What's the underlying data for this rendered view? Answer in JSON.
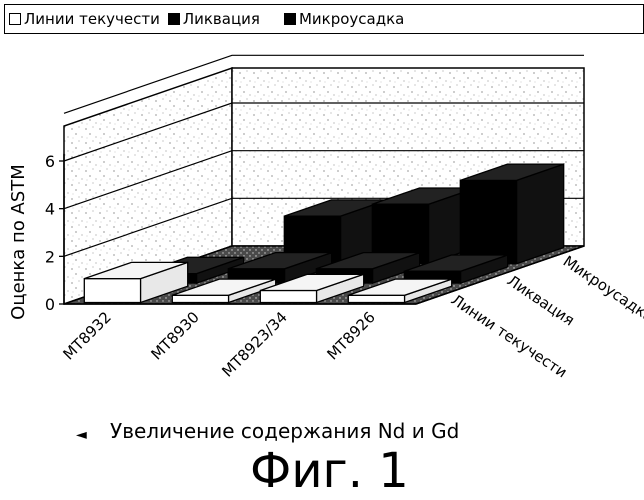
{
  "chart_data": {
    "type": "bar",
    "three_d": true,
    "ylabel": "Оценка по ASTM",
    "ylim": [
      0,
      6
    ],
    "yticks": [
      "0",
      "2",
      "4",
      "6"
    ],
    "categories": [
      "MT8932",
      "MT8930",
      "MT8923/34",
      "MT8926"
    ],
    "series": [
      {
        "name": "Линии текучести",
        "color": "#ffffff",
        "values": [
          1,
          0.3,
          0.5,
          0.3
        ]
      },
      {
        "name": "Ликвация",
        "color": "#000000",
        "values": [
          0.4,
          0.6,
          0.6,
          0.5
        ]
      },
      {
        "name": "Микроусадка",
        "color": "#000000",
        "values": [
          0,
          2,
          2.5,
          3.5
        ]
      }
    ],
    "depth_labels": [
      "Линии текучести",
      "Ликвация",
      "Микроусадка"
    ],
    "legend_position": "top"
  },
  "caption": {
    "arrow": "◄",
    "text": "Увеличение содержания Nd и Gd"
  },
  "figure_label": "Фиг. 1"
}
